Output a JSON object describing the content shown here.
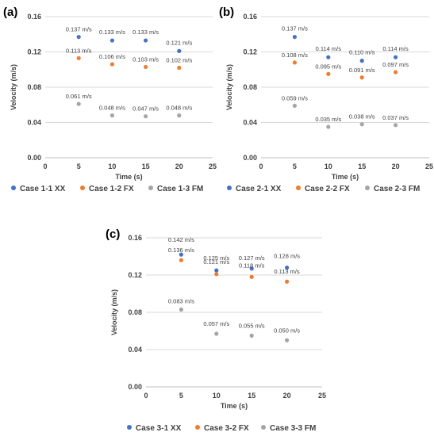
{
  "colors": {
    "xx": "#4472c4",
    "fx": "#ed7d31",
    "fm": "#a5a5a5"
  },
  "chart_data": [
    {
      "type": "scatter",
      "panel_label": "(a)",
      "xlabel": "Time (s)",
      "ylabel": "Velocity (m/s)",
      "xlim": [
        0,
        25
      ],
      "ylim": [
        0,
        0.16
      ],
      "x_ticks": [
        "0",
        "5",
        "10",
        "15",
        "20",
        "25"
      ],
      "y_ticks": [
        "0.00",
        "0.04",
        "0.08",
        "0.12",
        "0.16"
      ],
      "grid": "horizontal",
      "legend_position": "bottom",
      "series": [
        {
          "name": "Case 1-1 XX",
          "x": [
            5,
            10,
            15,
            20
          ],
          "y": [
            0.137,
            0.133,
            0.133,
            0.121
          ],
          "labels": [
            "0.137 m/s",
            "0.133 m/s",
            "0.133 m/s",
            "0.121 m/s"
          ]
        },
        {
          "name": "Case 1-2 FX",
          "x": [
            5,
            10,
            15,
            20
          ],
          "y": [
            0.113,
            0.106,
            0.103,
            0.102
          ],
          "labels": [
            "0.113 m/s",
            "0.106 m/s",
            "0.103 m/s",
            "0.102 m/s"
          ]
        },
        {
          "name": "Case 1-3 FM",
          "x": [
            5,
            10,
            15,
            20
          ],
          "y": [
            0.061,
            0.048,
            0.047,
            0.048
          ],
          "labels": [
            "0.061 m/s",
            "0.048 m/s",
            "0.047 m/s",
            "0.048 m/s"
          ]
        }
      ]
    },
    {
      "type": "scatter",
      "panel_label": "(b)",
      "xlabel": "Time (s)",
      "ylabel": "Velocity (m/s)",
      "xlim": [
        0,
        25
      ],
      "ylim": [
        0,
        0.16
      ],
      "x_ticks": [
        "0",
        "5",
        "10",
        "15",
        "20",
        "25"
      ],
      "y_ticks": [
        "0.00",
        "0.04",
        "0.08",
        "0.12",
        "0.16"
      ],
      "grid": "horizontal",
      "legend_position": "bottom",
      "series": [
        {
          "name": "Case 2-1 XX",
          "x": [
            5,
            10,
            15,
            20
          ],
          "y": [
            0.137,
            0.114,
            0.11,
            0.114
          ],
          "labels": [
            "0.137 m/s",
            "0.114 m/s",
            "0.110 m/s",
            "0.114 m/s"
          ]
        },
        {
          "name": "Case 2-2 FX",
          "x": [
            5,
            10,
            15,
            20
          ],
          "y": [
            0.108,
            0.095,
            0.091,
            0.097
          ],
          "labels": [
            "0.108 m/s",
            "0.095 m/s",
            "0.091 m/s",
            "0.097 m/s"
          ]
        },
        {
          "name": "Case 2-3 FM",
          "x": [
            5,
            10,
            15,
            20
          ],
          "y": [
            0.059,
            0.035,
            0.038,
            0.037
          ],
          "labels": [
            "0.059 m/s",
            "0.035 m/s",
            "0.038 m/s",
            "0.037 m/s"
          ]
        }
      ]
    },
    {
      "type": "scatter",
      "panel_label": "(c)",
      "xlabel": "Time (s)",
      "ylabel": "Velocity (m/s)",
      "xlim": [
        0,
        25
      ],
      "ylim": [
        0,
        0.16
      ],
      "x_ticks": [
        "0",
        "5",
        "10",
        "15",
        "20",
        "25"
      ],
      "y_ticks": [
        "0.00",
        "0.04",
        "0.08",
        "0.12",
        "0.16"
      ],
      "grid": "horizontal",
      "legend_position": "bottom",
      "series": [
        {
          "name": "Case 3-1 XX",
          "x": [
            5,
            10,
            15,
            20
          ],
          "y": [
            0.142,
            0.125,
            0.127,
            0.128
          ],
          "labels": [
            "0.142 m/s",
            "0.125 m/s",
            "0.127 m/s",
            "0.128 m/s"
          ]
        },
        {
          "name": "Case 3-2 FX",
          "x": [
            5,
            10,
            15,
            20
          ],
          "y": [
            0.136,
            0.121,
            0.118,
            0.113
          ],
          "labels": [
            "0.136 m/s",
            "0.121 m/s",
            "0.118 m/s",
            "0.113 m/s"
          ]
        },
        {
          "name": "Case 3-3 FM",
          "x": [
            5,
            10,
            15,
            20
          ],
          "y": [
            0.083,
            0.057,
            0.055,
            0.05
          ],
          "labels": [
            "0.083 m/s",
            "0.057 m/s",
            "0.055 m/s",
            "0.050 m/s"
          ]
        }
      ]
    }
  ]
}
